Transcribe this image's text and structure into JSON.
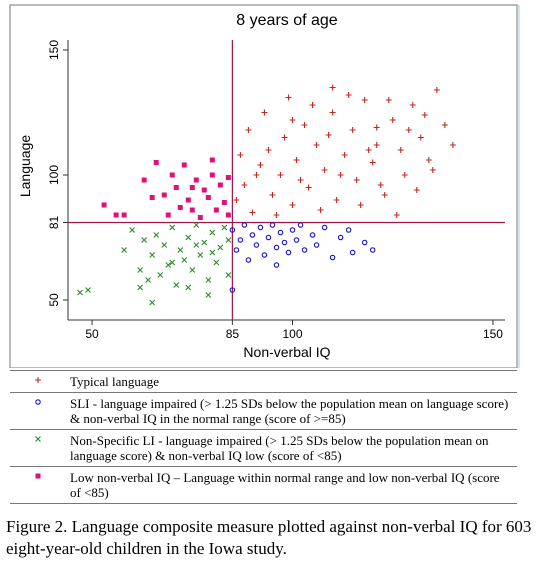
{
  "chart_data": {
    "type": "scatter",
    "title": "8 years of age",
    "xlabel": "Non-verbal IQ",
    "ylabel": "Language",
    "xlim": [
      44,
      153
    ],
    "ylim": [
      42,
      154
    ],
    "xticks": [
      50,
      85,
      100,
      150
    ],
    "yticks": [
      50,
      81,
      100,
      150
    ],
    "ref_lines": {
      "x": 85,
      "y": 81,
      "color": "#a0154a"
    },
    "series": [
      {
        "name": "Typical language",
        "color": "#c0281e",
        "marker": "plus",
        "x": [
          86,
          88,
          90,
          92,
          94,
          95,
          97,
          98,
          100,
          101,
          103,
          104,
          106,
          108,
          110,
          111,
          113,
          115,
          116,
          118,
          120,
          121,
          123,
          125,
          127,
          128,
          130,
          132,
          134,
          136,
          138,
          140,
          87,
          89,
          93,
          96,
          99,
          102,
          105,
          107,
          109,
          112,
          114,
          117,
          119,
          122,
          124,
          126,
          129,
          131,
          133,
          135,
          91,
          100,
          110,
          121
        ],
        "y": [
          90,
          96,
          85,
          104,
          110,
          92,
          100,
          115,
          88,
          106,
          120,
          95,
          112,
          102,
          125,
          90,
          108,
          118,
          98,
          130,
          105,
          112,
          92,
          122,
          110,
          100,
          128,
          115,
          106,
          134,
          120,
          112,
          108,
          118,
          125,
          84,
          131,
          98,
          128,
          86,
          116,
          100,
          132,
          88,
          110,
          96,
          130,
          84,
          118,
          94,
          124,
          102,
          100,
          122,
          135,
          119
        ]
      },
      {
        "name": "SLI - language impaired (> 1.25 SDs below the population mean on language score) & non-verbal IQ in the normal range (score of >=85)",
        "color": "#1414c8",
        "marker": "circle",
        "x": [
          85,
          86,
          87,
          88,
          89,
          90,
          91,
          92,
          93,
          94,
          95,
          96,
          97,
          98,
          99,
          100,
          101,
          102,
          103,
          105,
          106,
          108,
          110,
          112,
          114,
          115,
          118,
          120,
          85,
          96
        ],
        "y": [
          78,
          70,
          74,
          80,
          66,
          76,
          72,
          79,
          68,
          75,
          80,
          71,
          77,
          73,
          69,
          78,
          74,
          80,
          70,
          76,
          72,
          79,
          67,
          75,
          78,
          69,
          73,
          70,
          54,
          64
        ]
      },
      {
        "name": "Non-Specific LI - language impaired (> 1.25 SDs below the population mean on language score) & non-verbal IQ low (score of <85)",
        "color": "#2a8a2a",
        "marker": "cross",
        "x": [
          47,
          49,
          58,
          60,
          62,
          63,
          64,
          65,
          66,
          67,
          68,
          69,
          70,
          71,
          72,
          73,
          74,
          75,
          76,
          77,
          78,
          79,
          80,
          81,
          82,
          83,
          84,
          62,
          65,
          74,
          79,
          84,
          70,
          76,
          80
        ],
        "y": [
          53,
          54,
          70,
          78,
          62,
          74,
          58,
          68,
          76,
          60,
          72,
          64,
          79,
          56,
          70,
          66,
          75,
          62,
          80,
          68,
          73,
          58,
          77,
          65,
          71,
          79,
          74,
          55,
          49,
          55,
          52,
          60,
          65,
          72,
          69
        ]
      },
      {
        "name": "Low non-verbal IQ – Language within normal range and low non-verbal IQ (score of <85)",
        "color": "#e0107a",
        "marker": "square",
        "x": [
          53,
          56,
          58,
          63,
          65,
          66,
          68,
          69,
          70,
          71,
          72,
          73,
          74,
          75,
          76,
          77,
          78,
          79,
          80,
          81,
          82,
          83,
          84,
          84,
          80,
          75
        ],
        "y": [
          88,
          84,
          84,
          98,
          91,
          105,
          92,
          84,
          100,
          95,
          87,
          104,
          90,
          86,
          98,
          83,
          94,
          91,
          100,
          86,
          96,
          89,
          99,
          84,
          106,
          95
        ]
      }
    ]
  },
  "caption": "Figure 2.  Language composite measure plotted against non-verbal IQ for 603 eight-year-old children in the Iowa study."
}
